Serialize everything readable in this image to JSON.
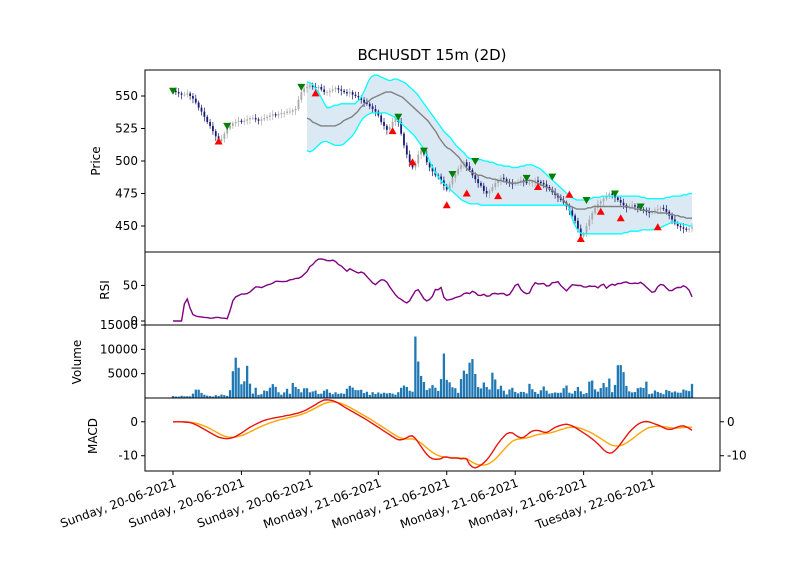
{
  "chart_data": {
    "type": "line",
    "title": "BCHUSDT 15m (2D)",
    "x_tick_labels": [
      "Sunday, 20-06-2021",
      "Sunday, 20-06-2021",
      "Sunday, 20-06-2021",
      "Monday, 21-06-2021",
      "Monday, 21-06-2021",
      "Monday, 21-06-2021",
      "Monday, 21-06-2021",
      "Tuesday, 22-06-2021"
    ],
    "x_tick_positions": [
      0,
      24,
      48,
      72,
      96,
      120,
      144,
      168
    ],
    "price": {
      "ylabel": "Price",
      "ylim": [
        430,
        570
      ],
      "ticks": [
        450,
        475,
        500,
        525,
        550
      ],
      "close": [
        554,
        553,
        552,
        551,
        551,
        552,
        550,
        548,
        545,
        541,
        538,
        534,
        530,
        527,
        523,
        519,
        515,
        517,
        521,
        525,
        527,
        529,
        530,
        531,
        530,
        531,
        532,
        533,
        533,
        532,
        531,
        532,
        533,
        534,
        535,
        536,
        535,
        536,
        537,
        537,
        538,
        538,
        539,
        540,
        547,
        553,
        556,
        557,
        558,
        557,
        556,
        557,
        555,
        553,
        553,
        554,
        555,
        556,
        555,
        554,
        553,
        552,
        553,
        551,
        550,
        549,
        547,
        545,
        544,
        542,
        540,
        538,
        535,
        530,
        527,
        524,
        526,
        530,
        533,
        530,
        521,
        512,
        505,
        499,
        495,
        498,
        505,
        508,
        505,
        499,
        495,
        492,
        489,
        488,
        485,
        481,
        478,
        482,
        487,
        490,
        494,
        497,
        499,
        496,
        493,
        489,
        486,
        483,
        481,
        477,
        475,
        477,
        480,
        483,
        485,
        487,
        486,
        484,
        483,
        482,
        483,
        484,
        485,
        484,
        483,
        483,
        484,
        485,
        484,
        483,
        482,
        480,
        478,
        476,
        474,
        472,
        470,
        468,
        465,
        462,
        458,
        454,
        448,
        442,
        444,
        450,
        455,
        460,
        464,
        467,
        469,
        471,
        473,
        475,
        474,
        472,
        470,
        468,
        466,
        464,
        465,
        466,
        465,
        464,
        463,
        462,
        461,
        460,
        461,
        462,
        463,
        464,
        463,
        461,
        458,
        455,
        452,
        450,
        449,
        448,
        447,
        448,
        449
      ],
      "sma": [
        533,
        532,
        530,
        529,
        528,
        527,
        527,
        527,
        527,
        527,
        527,
        528,
        529,
        531,
        532,
        533,
        534,
        536,
        538,
        541,
        543,
        545,
        546,
        548,
        549,
        550,
        551,
        552,
        553,
        553,
        553,
        552,
        551,
        550,
        549,
        547,
        545,
        543,
        541,
        539,
        537,
        535,
        533,
        531,
        528,
        525,
        522,
        518,
        515,
        512,
        510,
        509,
        507,
        505,
        503,
        500,
        497,
        494,
        492,
        491,
        490,
        489,
        489,
        488,
        487,
        487,
        486,
        486,
        485,
        485,
        484,
        484,
        483,
        483,
        483,
        483,
        484,
        484,
        485,
        485,
        485,
        484,
        483,
        482,
        481,
        480,
        479,
        478,
        476,
        474,
        472,
        470,
        468,
        466,
        465,
        464,
        463,
        463,
        463,
        463,
        464,
        464,
        465,
        465,
        465,
        465,
        465,
        465,
        465,
        465,
        465,
        465,
        465,
        465,
        465,
        464,
        464,
        463,
        463,
        462,
        462,
        462,
        461,
        461,
        461,
        460,
        460,
        460,
        460,
        459,
        459,
        458,
        458,
        457,
        457,
        456,
        456,
        456
      ],
      "bb_upper": [
        561,
        560,
        559,
        556,
        553,
        549,
        545,
        541,
        541,
        542,
        543,
        543,
        544,
        544,
        544,
        544,
        544,
        544,
        546,
        548,
        552,
        557,
        562,
        565,
        566,
        566,
        565,
        564,
        563,
        562,
        562,
        563,
        563,
        562,
        561,
        560,
        558,
        556,
        554,
        552,
        549,
        546,
        543,
        540,
        537,
        534,
        531,
        528,
        525,
        522,
        520,
        518,
        515,
        512,
        510,
        508,
        506,
        503,
        502,
        501,
        501,
        501,
        501,
        500,
        500,
        499,
        499,
        498,
        497,
        497,
        496,
        496,
        496,
        495,
        495,
        495,
        496,
        496,
        497,
        497,
        497,
        496,
        495,
        494,
        492,
        490,
        488,
        486,
        484,
        482,
        480,
        478,
        476,
        474,
        472,
        471,
        470,
        470,
        470,
        470,
        470,
        471,
        472,
        472,
        472,
        473,
        473,
        473,
        473,
        473,
        473,
        473,
        473,
        473,
        473,
        473,
        473,
        473,
        473,
        472,
        472,
        471,
        471,
        471,
        471,
        471,
        471,
        471,
        472,
        472,
        473,
        473,
        473,
        473,
        474,
        474,
        475,
        475
      ],
      "bb_lower": [
        508,
        507,
        508,
        510,
        512,
        514,
        515,
        515,
        514,
        513,
        512,
        512,
        512,
        513,
        515,
        517,
        519,
        522,
        526,
        530,
        533,
        535,
        536,
        537,
        537,
        537,
        537,
        537,
        537,
        536,
        535,
        534,
        532,
        530,
        528,
        526,
        524,
        522,
        520,
        517,
        514,
        511,
        507,
        503,
        498,
        494,
        490,
        487,
        484,
        482,
        480,
        478,
        476,
        474,
        472,
        470,
        469,
        468,
        467,
        467,
        467,
        467,
        466,
        466,
        466,
        466,
        466,
        466,
        466,
        466,
        466,
        466,
        466,
        466,
        466,
        466,
        466,
        466,
        466,
        466,
        466,
        466,
        466,
        466,
        466,
        466,
        466,
        466,
        466,
        466,
        466,
        466,
        466,
        466,
        458,
        452,
        448,
        445,
        444,
        444,
        444,
        444,
        444,
        444,
        444,
        444,
        444,
        444,
        444,
        444,
        444,
        444,
        444,
        445,
        445,
        446,
        446,
        446,
        446,
        447,
        447,
        447,
        447,
        447,
        448,
        448,
        449,
        450,
        451,
        452,
        453,
        453,
        452,
        452,
        451,
        451,
        450,
        450
      ],
      "band_start_index": 47,
      "sell_signals": [
        {
          "i": 0,
          "y": 554
        },
        {
          "i": 19,
          "y": 527
        },
        {
          "i": 45,
          "y": 557
        },
        {
          "i": 79,
          "y": 534
        },
        {
          "i": 88,
          "y": 508
        },
        {
          "i": 98,
          "y": 490
        },
        {
          "i": 106,
          "y": 500
        },
        {
          "i": 124,
          "y": 487
        },
        {
          "i": 133,
          "y": 488
        },
        {
          "i": 145,
          "y": 470
        },
        {
          "i": 155,
          "y": 475
        },
        {
          "i": 164,
          "y": 465
        }
      ],
      "buy_signals": [
        {
          "i": 16,
          "y": 515
        },
        {
          "i": 50,
          "y": 552
        },
        {
          "i": 77,
          "y": 523
        },
        {
          "i": 84,
          "y": 499
        },
        {
          "i": 96,
          "y": 466
        },
        {
          "i": 103,
          "y": 475
        },
        {
          "i": 114,
          "y": 473
        },
        {
          "i": 128,
          "y": 480
        },
        {
          "i": 139,
          "y": 474
        },
        {
          "i": 143,
          "y": 440
        },
        {
          "i": 150,
          "y": 461
        },
        {
          "i": 157,
          "y": 456
        },
        {
          "i": 170,
          "y": 449
        }
      ]
    },
    "rsi": {
      "ylabel": "RSI",
      "ylim": [
        0,
        100
      ],
      "ticks": [
        0,
        50
      ],
      "values": [
        0,
        0,
        0,
        0,
        33,
        30,
        10,
        8,
        6,
        6,
        5,
        5,
        4,
        4,
        5,
        5,
        4,
        4,
        3,
        20,
        34,
        34,
        38,
        38,
        38,
        40,
        44,
        48,
        48,
        47,
        49,
        51,
        52,
        54,
        57,
        55,
        56,
        55,
        58,
        58,
        60,
        60,
        62,
        66,
        70,
        78,
        80,
        86,
        88,
        87,
        86,
        84,
        86,
        85,
        80,
        78,
        74,
        70,
        74,
        71,
        69,
        67,
        70,
        65,
        60,
        56,
        50,
        54,
        58,
        58,
        55,
        48,
        42,
        36,
        32,
        30,
        26,
        25,
        32,
        40,
        46,
        40,
        32,
        28,
        30,
        35,
        45,
        44,
        48,
        28,
        30,
        30,
        32,
        34,
        34,
        38,
        40,
        38,
        42,
        40,
        36,
        36,
        38,
        34,
        36,
        40,
        38,
        38,
        40,
        36,
        36,
        42,
        50,
        52,
        44,
        40,
        38,
        40,
        52,
        55,
        50,
        55,
        50,
        48,
        54,
        54,
        56,
        50,
        46,
        42,
        48,
        52,
        50,
        50,
        50,
        46,
        50,
        48,
        50,
        46,
        50,
        52,
        46,
        50,
        52,
        50,
        54,
        52,
        56,
        54,
        52,
        54,
        52,
        55,
        52,
        48,
        44,
        40,
        42,
        50,
        52,
        50,
        44,
        42,
        44,
        48,
        46,
        50,
        48,
        44,
        34
      ],
      "color": "#800080"
    },
    "volume": {
      "ylabel": "Volume",
      "ylim": [
        0,
        15000
      ],
      "ticks": [
        5000,
        10000,
        15000
      ],
      "values": [
        400,
        300,
        300,
        500,
        300,
        400,
        300,
        1500,
        2000,
        1200,
        700,
        500,
        400,
        300,
        600,
        400,
        800,
        500,
        400,
        2500,
        8500,
        8000,
        3000,
        2400,
        7200,
        3100,
        900,
        2200,
        400,
        900,
        1800,
        1200,
        2800,
        2900,
        1500,
        600,
        900,
        2100,
        700,
        3100,
        2200,
        1800,
        1000,
        2400,
        1800,
        700,
        2000,
        900,
        700,
        1400,
        1900,
        1100,
        800,
        1200,
        800,
        1000,
        800,
        2500,
        2500,
        1800,
        1400,
        2000,
        900,
        1400,
        600,
        1200,
        800,
        1200,
        800,
        1200,
        800,
        1200,
        600,
        800,
        1900,
        2600,
        2400,
        1500,
        1300,
        13500,
        6500,
        4000,
        3000,
        900,
        2800,
        2500,
        1600,
        1200,
        10600,
        3800,
        3300,
        2200,
        2000,
        900,
        4700,
        6000,
        4400,
        9400,
        6600,
        2700,
        1400,
        3400,
        2400,
        1500,
        5200,
        3700,
        1500,
        2800,
        1000,
        600,
        2600,
        1600,
        800,
        1200,
        1400,
        600,
        3000,
        1800,
        1200,
        800,
        1800,
        2600,
        900,
        900,
        1100,
        1200,
        800,
        1800,
        2800,
        1100,
        900,
        1500,
        2400,
        1100,
        700,
        1200,
        5000,
        2200,
        1200,
        1500,
        3400,
        1900,
        4200,
        1200,
        2800,
        7400,
        6600,
        4800,
        1200,
        1500,
        800,
        1800,
        2400,
        1600,
        3800,
        800,
        900,
        1600,
        1200,
        1000,
        700,
        2200,
        900,
        1400,
        1300,
        800,
        1800,
        1600,
        1300,
        2900
      ],
      "color": "#1f77b4"
    },
    "macd": {
      "ylabel": "MACD",
      "ylim": [
        -14.5,
        7
      ],
      "ticks_left": [
        0,
        -10
      ],
      "ticks_right": [
        0,
        -10
      ],
      "macd": [
        0,
        0,
        0,
        -0.1,
        -0.2,
        -0.6,
        -1.2,
        -1.9,
        -2.6,
        -3.3,
        -4.0,
        -4.6,
        -4.9,
        -5.0,
        -4.8,
        -4.3,
        -3.6,
        -2.8,
        -1.9,
        -1.2,
        -0.6,
        0.0,
        0.5,
        0.8,
        1.1,
        1.3,
        1.5,
        1.8,
        2.0,
        2.3,
        2.6,
        3.0,
        3.6,
        4.3,
        5.0,
        5.8,
        6.4,
        6.5,
        6.3,
        5.8,
        5.1,
        4.3,
        3.6,
        2.9,
        2.2,
        1.5,
        0.8,
        0.0,
        -0.8,
        -1.6,
        -2.4,
        -3.2,
        -4.0,
        -4.8,
        -5.4,
        -5.2,
        -4.6,
        -3.9,
        -5.0,
        -6.8,
        -8.6,
        -10.2,
        -10.9,
        -11.1,
        -10.9,
        -10.2,
        -10.6,
        -10.7,
        -10.7,
        -11.0,
        -10.6,
        -12.9,
        -13.7,
        -13.2,
        -12.4,
        -11.2,
        -9.6,
        -7.6,
        -5.8,
        -4.4,
        -3.2,
        -3.2,
        -4.1,
        -4.8,
        -4.5,
        -3.4,
        -2.6,
        -2.5,
        -2.8,
        -3.3,
        -2.7,
        -1.8,
        -1.3,
        -0.9,
        -0.7,
        -1.0,
        -1.6,
        -2.4,
        -3.2,
        -4.0,
        -4.9,
        -5.9,
        -7.1,
        -8.4,
        -9.3,
        -9.1,
        -8.0,
        -6.4,
        -4.7,
        -3.1,
        -1.8,
        -0.8,
        -0.1,
        0.1,
        -0.1,
        -0.6,
        -1.0,
        -1.6,
        -2.2,
        -2.3,
        -1.8,
        -1.3,
        -1.2,
        -1.7,
        -2.5
      ],
      "signal": [
        0,
        0,
        0,
        0,
        -0.1,
        -0.3,
        -0.6,
        -1.0,
        -1.5,
        -2.1,
        -2.8,
        -3.5,
        -4.1,
        -4.5,
        -4.6,
        -4.5,
        -4.2,
        -3.8,
        -3.2,
        -2.6,
        -2.0,
        -1.4,
        -0.9,
        -0.4,
        0.0,
        0.4,
        0.7,
        1.0,
        1.3,
        1.6,
        1.9,
        2.3,
        2.8,
        3.4,
        4.0,
        4.7,
        5.3,
        5.7,
        5.9,
        5.8,
        5.5,
        5.0,
        4.4,
        3.7,
        3.0,
        2.3,
        1.6,
        0.9,
        0.1,
        -0.7,
        -1.5,
        -2.3,
        -3.1,
        -3.9,
        -4.6,
        -5.0,
        -5.1,
        -5.0,
        -5.3,
        -6.0,
        -7.0,
        -8.1,
        -9.0,
        -9.8,
        -10.2,
        -10.4,
        -10.5,
        -10.6,
        -10.6,
        -10.7,
        -10.7,
        -11.5,
        -12.3,
        -12.7,
        -12.8,
        -12.6,
        -12.0,
        -11.0,
        -9.7,
        -8.3,
        -6.9,
        -5.8,
        -5.2,
        -5.0,
        -4.9,
        -4.6,
        -4.2,
        -3.8,
        -3.6,
        -3.5,
        -3.3,
        -3.0,
        -2.6,
        -2.2,
        -1.8,
        -1.6,
        -1.6,
        -1.8,
        -2.2,
        -2.7,
        -3.3,
        -4.0,
        -4.8,
        -5.6,
        -6.4,
        -7.0,
        -7.2,
        -7.0,
        -6.5,
        -5.7,
        -4.8,
        -3.8,
        -2.9,
        -2.1,
        -1.6,
        -1.4,
        -1.3,
        -1.4,
        -1.6,
        -1.8,
        -1.9,
        -1.8,
        -1.7,
        -1.6,
        -1.6
      ],
      "macd_color": "#e8150d",
      "signal_color": "#ffa500"
    }
  }
}
